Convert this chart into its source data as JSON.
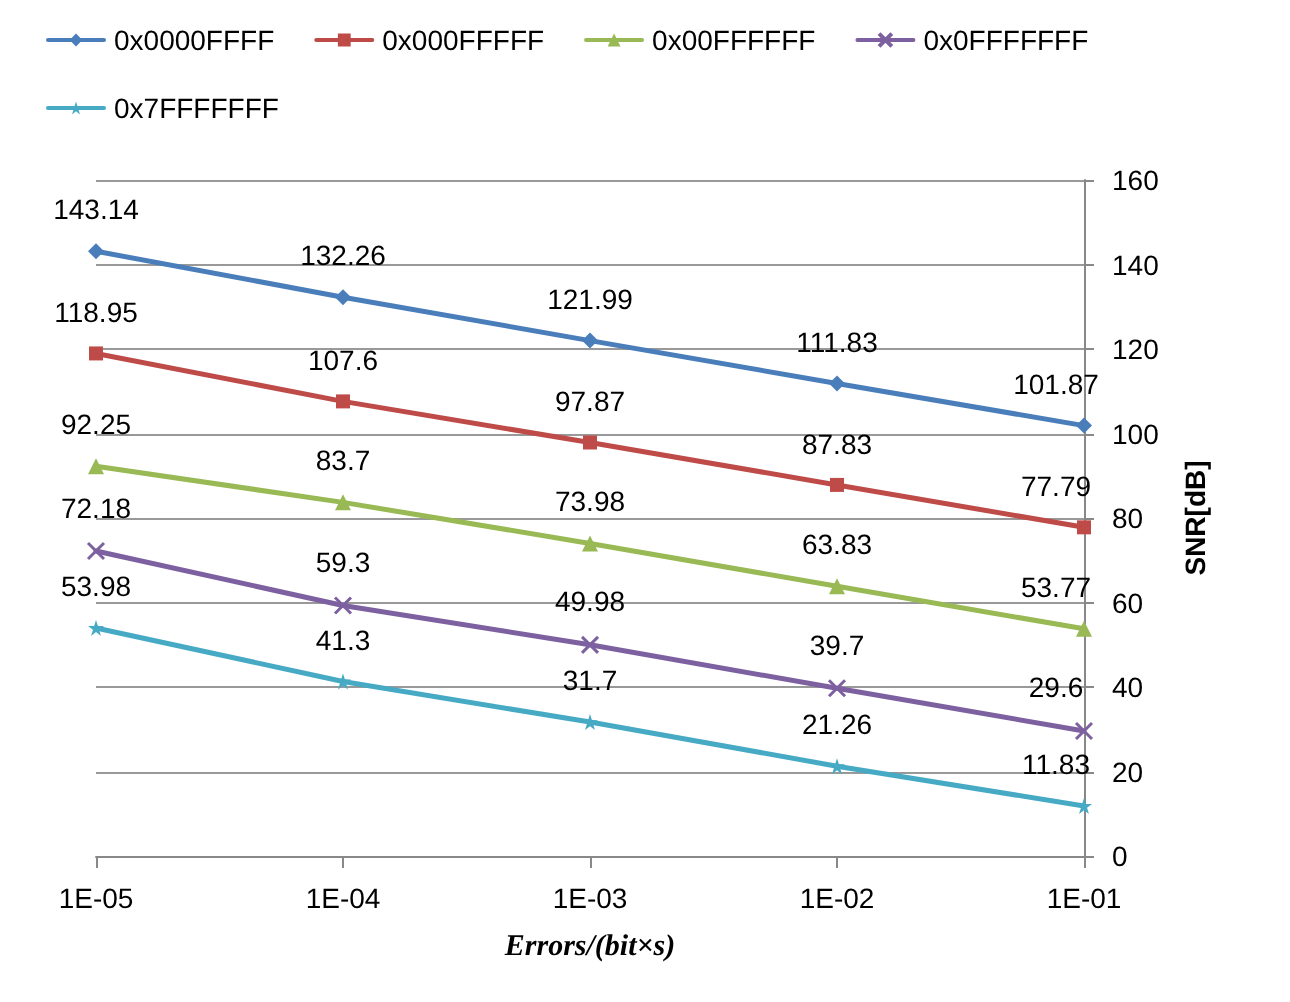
{
  "chart_data": {
    "type": "line",
    "xlabel": "Errors/(bit×s)",
    "ylabel": "SNR[dB]",
    "categories": [
      "1E-05",
      "1E-04",
      "1E-03",
      "1E-02",
      "1E-01"
    ],
    "series": [
      {
        "name": "0x0000FFFF",
        "color": "#4a7ebb",
        "marker": "diamond",
        "values": [
          143.14,
          132.26,
          121.99,
          111.83,
          101.87
        ]
      },
      {
        "name": "0x000FFFFF",
        "color": "#be4b48",
        "marker": "square",
        "values": [
          118.95,
          107.6,
          97.87,
          87.83,
          77.79
        ]
      },
      {
        "name": "0x00FFFFFF",
        "color": "#98b954",
        "marker": "triangle",
        "values": [
          92.25,
          83.7,
          73.98,
          63.83,
          53.77
        ]
      },
      {
        "name": "0x0FFFFFFF",
        "color": "#7d60a0",
        "marker": "cross",
        "values": [
          72.18,
          59.3,
          49.98,
          39.7,
          29.6
        ]
      },
      {
        "name": "0x7FFFFFFF",
        "color": "#46aac5",
        "marker": "star",
        "values": [
          53.98,
          41.3,
          31.7,
          21.26,
          11.83
        ]
      }
    ],
    "ylim": [
      0,
      160
    ],
    "yticks": [
      0,
      20,
      40,
      60,
      80,
      100,
      120,
      140,
      160
    ],
    "grid": "y",
    "legend": "top",
    "data_labels": true,
    "line_style": "solid"
  }
}
